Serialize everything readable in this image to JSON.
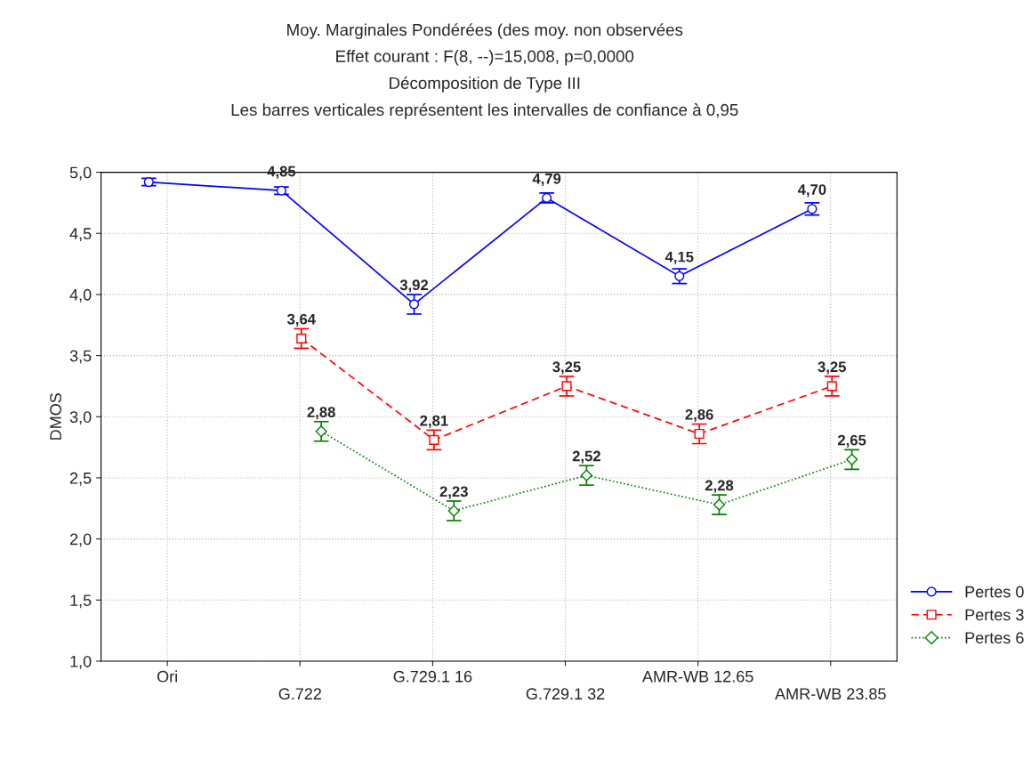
{
  "chart_data": {
    "type": "line",
    "title": "Moy. Marginales Pondérées (des moy. non observées\nEffet courant : F(8, --)=15,008, p=0,0000\nDécomposition de Type III\nLes barres verticales représentent les intervalles de confiance à 0,95",
    "ylabel": "DMOS",
    "categories": [
      "Ori",
      "G.722",
      "G.729.1 16",
      "G.729.1 32",
      "AMR-WB 12.65",
      "AMR-WB 23.85"
    ],
    "series": [
      {
        "name": "Pertes 0",
        "color": "#0000ff",
        "marker": "circle",
        "line_style": "solid",
        "values": [
          4.92,
          4.85,
          3.92,
          4.79,
          4.15,
          4.7
        ],
        "errors": [
          0.03,
          0.03,
          0.08,
          0.04,
          0.06,
          0.05
        ],
        "value_labels": [
          null,
          "4,85",
          "3,92",
          "4,79",
          "4,15",
          "4,70"
        ]
      },
      {
        "name": "Pertes 3",
        "color": "#ff0000",
        "marker": "square",
        "line_style": "dashed",
        "values": [
          null,
          3.64,
          2.81,
          3.25,
          2.86,
          3.25
        ],
        "errors": [
          null,
          0.08,
          0.08,
          0.08,
          0.08,
          0.08
        ],
        "value_labels": [
          null,
          "3,64",
          "2,81",
          "3,25",
          "2,86",
          "3,25"
        ]
      },
      {
        "name": "Pertes 6",
        "color": "#008000",
        "marker": "diamond",
        "line_style": "dotted",
        "values": [
          null,
          2.88,
          2.23,
          2.52,
          2.28,
          2.65
        ],
        "errors": [
          null,
          0.08,
          0.08,
          0.08,
          0.08,
          0.08
        ],
        "value_labels": [
          null,
          "2,88",
          "2,23",
          "2,52",
          "2,28",
          "2,65"
        ]
      }
    ],
    "ylim": [
      1.0,
      5.0
    ],
    "yticks": [
      {
        "value": 1.0,
        "label": "1,0"
      },
      {
        "value": 1.5,
        "label": "1,5"
      },
      {
        "value": 2.0,
        "label": "2,0"
      },
      {
        "value": 2.5,
        "label": "2,5"
      },
      {
        "value": 3.0,
        "label": "3,0"
      },
      {
        "value": 3.5,
        "label": "3,5"
      },
      {
        "value": 4.0,
        "label": "4,0"
      },
      {
        "value": 4.5,
        "label": "4,5"
      },
      {
        "value": 5.0,
        "label": "5,0"
      }
    ],
    "grid": true,
    "legend": "bottom right"
  }
}
